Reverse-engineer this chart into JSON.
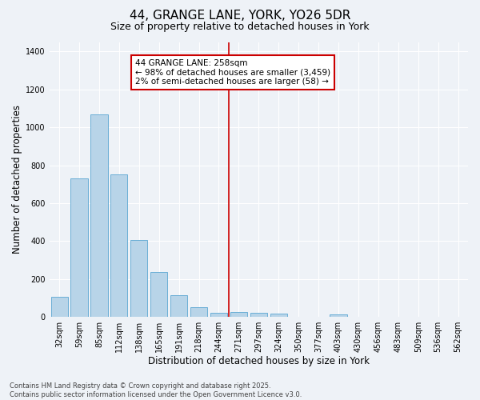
{
  "title_line1": "44, GRANGE LANE, YORK, YO26 5DR",
  "title_line2": "Size of property relative to detached houses in York",
  "xlabel": "Distribution of detached houses by size in York",
  "ylabel": "Number of detached properties",
  "categories": [
    "32sqm",
    "59sqm",
    "85sqm",
    "112sqm",
    "138sqm",
    "165sqm",
    "191sqm",
    "218sqm",
    "244sqm",
    "271sqm",
    "297sqm",
    "324sqm",
    "350sqm",
    "377sqm",
    "403sqm",
    "430sqm",
    "456sqm",
    "483sqm",
    "509sqm",
    "536sqm",
    "562sqm"
  ],
  "values": [
    105,
    730,
    1070,
    750,
    405,
    235,
    113,
    50,
    20,
    25,
    20,
    18,
    0,
    0,
    12,
    0,
    0,
    0,
    0,
    0,
    0
  ],
  "bar_color": "#b8d4e8",
  "bar_edge_color": "#6aaed6",
  "vline_x": 8.5,
  "vline_color": "#cc0000",
  "annotation_text": "44 GRANGE LANE: 258sqm\n← 98% of detached houses are smaller (3,459)\n2% of semi-detached houses are larger (58) →",
  "annotation_box_color": "#ffffff",
  "annotation_box_edge": "#cc0000",
  "ylim": [
    0,
    1450
  ],
  "yticks": [
    0,
    200,
    400,
    600,
    800,
    1000,
    1200,
    1400
  ],
  "bg_color": "#eef2f7",
  "plot_bg_color": "#eef2f7",
  "footer_line1": "Contains HM Land Registry data © Crown copyright and database right 2025.",
  "footer_line2": "Contains public sector information licensed under the Open Government Licence v3.0.",
  "title_fontsize": 11,
  "subtitle_fontsize": 9,
  "axis_label_fontsize": 8.5,
  "tick_fontsize": 7,
  "annotation_fontsize": 7.5,
  "footer_fontsize": 6
}
